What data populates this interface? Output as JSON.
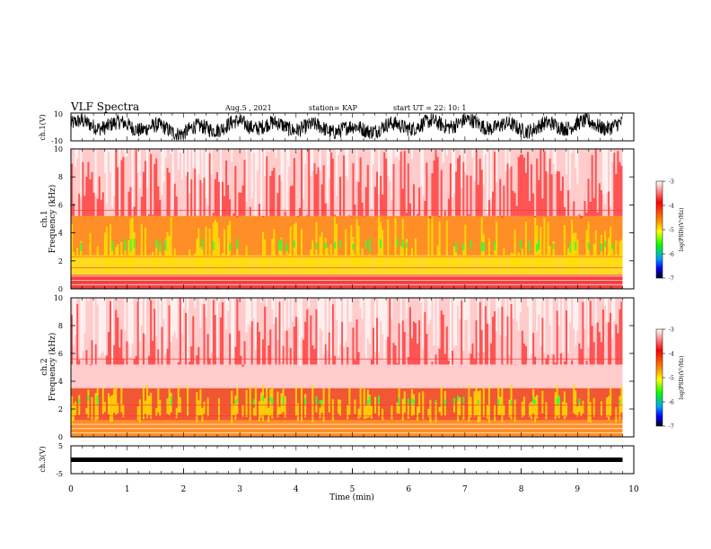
{
  "header": {
    "title": "VLF Spectra",
    "date": "Aug.5 , 2021",
    "station": "station= KAP",
    "start": "start UT = 22: 10: 1"
  },
  "colors": {
    "frame": "#000000",
    "spec_white": "#ffffff",
    "spec_red": "#ff0000",
    "spec_orange": "#ff8c00",
    "spec_yellow": "#ffff00",
    "spec_green": "#00ff00",
    "spec_blue": "#0000ff",
    "spec_black": "#000000"
  },
  "chart_data": [
    {
      "id": "ch1_wave",
      "type": "line",
      "ylabel": "ch.1(V)",
      "ylim": [
        -10,
        10
      ],
      "ytick_labels": [
        "10",
        "-10"
      ],
      "xlim": [
        0,
        10
      ],
      "approx_amplitude_range": [
        -10,
        10
      ],
      "slow_envelope": {
        "x": [
          0,
          1,
          2,
          3,
          4,
          5,
          6,
          7,
          8,
          9,
          9.8
        ],
        "y": [
          2,
          1,
          -3,
          2,
          0,
          -2,
          1,
          3,
          -1,
          2,
          1
        ]
      }
    },
    {
      "id": "ch1_spectrogram",
      "type": "heatmap",
      "ylabel": "ch.1\nFrequency (kHz)",
      "ylim": [
        0,
        10
      ],
      "ytick_labels": [
        "0",
        "2",
        "4",
        "6",
        "8",
        "10"
      ],
      "xlim": [
        0,
        10
      ],
      "data_end_min": 9.8,
      "colorbar": {
        "label": "log(PSD)(V²/Hz)",
        "range": [
          -7,
          -3
        ],
        "tick_labels": [
          "-3",
          "-4",
          "-5",
          "-6",
          "-7"
        ]
      },
      "bands_khz": [
        {
          "from": 0,
          "to": 1,
          "level": "red"
        },
        {
          "from": 1,
          "to": 2.4,
          "level": "yellow"
        },
        {
          "from": 2.4,
          "to": 5.2,
          "level": "orange"
        },
        {
          "from": 5.2,
          "to": 10,
          "level": "white-red"
        }
      ],
      "green_patches_khz": [
        2.6,
        3.6
      ]
    },
    {
      "id": "ch2_spectrogram",
      "type": "heatmap",
      "ylabel": "ch.2\nFrequency (kHz)",
      "ylim": [
        0,
        10
      ],
      "ytick_labels": [
        "0",
        "2",
        "4",
        "6",
        "8",
        "10"
      ],
      "xlim": [
        0,
        10
      ],
      "data_end_min": 9.8,
      "colorbar": {
        "label": "log(PSD)(V²/Hz)",
        "range": [
          -7,
          -3
        ],
        "tick_labels": [
          "-3",
          "-4",
          "-5",
          "-6",
          "-7"
        ]
      },
      "bands_khz": [
        {
          "from": 0,
          "to": 1.2,
          "level": "orange"
        },
        {
          "from": 1.2,
          "to": 3.5,
          "level": "orange-red"
        },
        {
          "from": 3.5,
          "to": 10,
          "level": "white-red"
        }
      ],
      "green_patches_khz": [
        2.2,
        3.0
      ]
    },
    {
      "id": "ch3_wave",
      "type": "line",
      "ylabel": "ch.3(V)",
      "ylim": [
        -5,
        5
      ],
      "ytick_labels": [
        "5",
        "-5"
      ],
      "xlim": [
        0,
        10
      ],
      "constant_level": 0,
      "x_ticks": [
        "0",
        "1",
        "2",
        "3",
        "4",
        "5",
        "6",
        "7",
        "8",
        "9",
        "10"
      ],
      "xlabel": "Time (min)"
    }
  ]
}
